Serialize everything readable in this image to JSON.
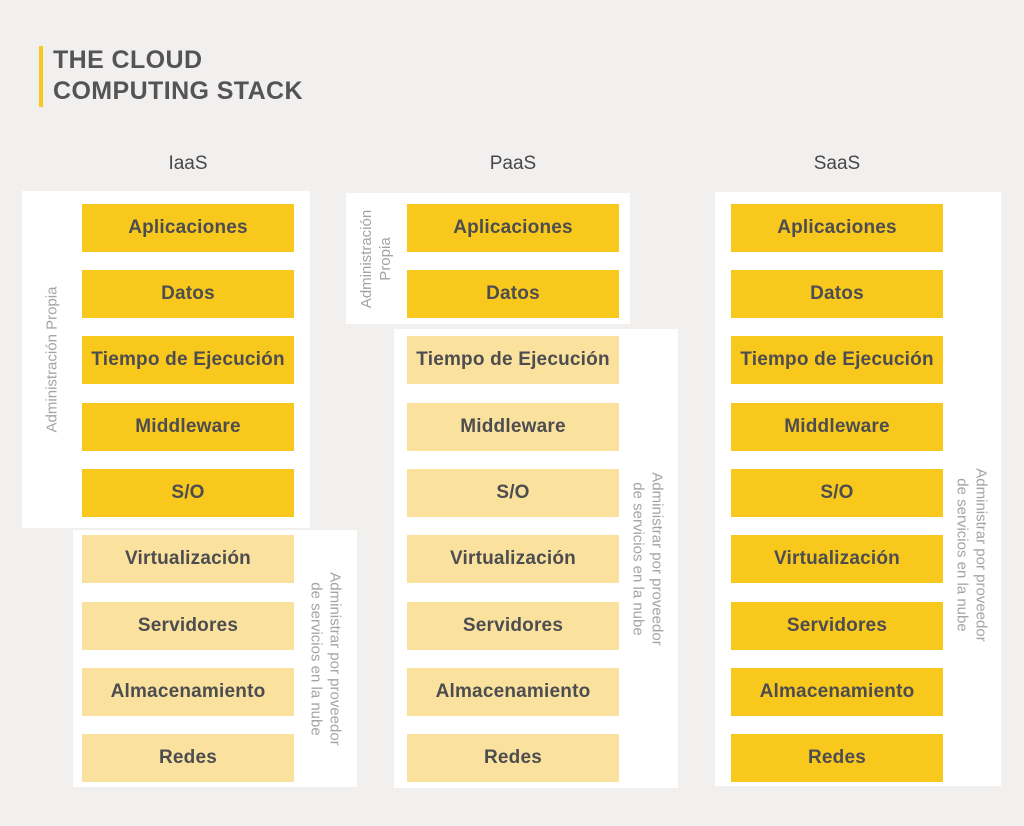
{
  "title": {
    "lines": [
      "THE CLOUD",
      "COMPUTING STACK"
    ]
  },
  "colors": {
    "background": "#F1F0EE",
    "panel": "#FFFFFF",
    "gold": "#F8C81C",
    "pale_gold": "#FAE29E",
    "accent_bar": "#F8C81C",
    "title_text": "#545457",
    "box_text": "#4D4D50",
    "side_label_text": "#A6A4A2"
  },
  "columns": [
    {
      "header": "IaaS",
      "own_label_lines": [
        "Administración Propia"
      ],
      "provider_label_lines": [
        "Administrar por proveedor",
        "de servicios en la nube"
      ],
      "layers": [
        {
          "label": "Aplicaciones",
          "managed_by": "own",
          "fill": "gold"
        },
        {
          "label": "Datos",
          "managed_by": "own",
          "fill": "gold"
        },
        {
          "label": "Tiempo de Ejecución",
          "managed_by": "own",
          "fill": "gold"
        },
        {
          "label": "Middleware",
          "managed_by": "own",
          "fill": "gold"
        },
        {
          "label": "S/O",
          "managed_by": "own",
          "fill": "gold"
        },
        {
          "label": "Virtualización",
          "managed_by": "provider",
          "fill": "pale"
        },
        {
          "label": "Servidores",
          "managed_by": "provider",
          "fill": "pale"
        },
        {
          "label": "Almacenamiento",
          "managed_by": "provider",
          "fill": "pale"
        },
        {
          "label": "Redes",
          "managed_by": "provider",
          "fill": "pale"
        }
      ]
    },
    {
      "header": "PaaS",
      "own_label_lines": [
        "Administración",
        "Propia"
      ],
      "provider_label_lines": [
        "Administrar por proveedor",
        "de servicios en la nube"
      ],
      "layers": [
        {
          "label": "Aplicaciones",
          "managed_by": "own",
          "fill": "gold"
        },
        {
          "label": "Datos",
          "managed_by": "own",
          "fill": "gold"
        },
        {
          "label": "Tiempo de Ejecución",
          "managed_by": "provider",
          "fill": "pale"
        },
        {
          "label": "Middleware",
          "managed_by": "provider",
          "fill": "pale"
        },
        {
          "label": "S/O",
          "managed_by": "provider",
          "fill": "pale"
        },
        {
          "label": "Virtualización",
          "managed_by": "provider",
          "fill": "pale"
        },
        {
          "label": "Servidores",
          "managed_by": "provider",
          "fill": "pale"
        },
        {
          "label": "Almacenamiento",
          "managed_by": "provider",
          "fill": "pale"
        },
        {
          "label": "Redes",
          "managed_by": "provider",
          "fill": "pale"
        }
      ]
    },
    {
      "header": "SaaS",
      "own_label_lines": [],
      "provider_label_lines": [
        "Administrar por proveedor",
        "de servicios en la nube"
      ],
      "layers": [
        {
          "label": "Aplicaciones",
          "managed_by": "provider",
          "fill": "gold"
        },
        {
          "label": "Datos",
          "managed_by": "provider",
          "fill": "gold"
        },
        {
          "label": "Tiempo de Ejecución",
          "managed_by": "provider",
          "fill": "gold"
        },
        {
          "label": "Middleware",
          "managed_by": "provider",
          "fill": "gold"
        },
        {
          "label": "S/O",
          "managed_by": "provider",
          "fill": "gold"
        },
        {
          "label": "Virtualización",
          "managed_by": "provider",
          "fill": "gold"
        },
        {
          "label": "Servidores",
          "managed_by": "provider",
          "fill": "gold"
        },
        {
          "label": "Almacenamiento",
          "managed_by": "provider",
          "fill": "gold"
        },
        {
          "label": "Redes",
          "managed_by": "provider",
          "fill": "gold"
        }
      ]
    }
  ]
}
